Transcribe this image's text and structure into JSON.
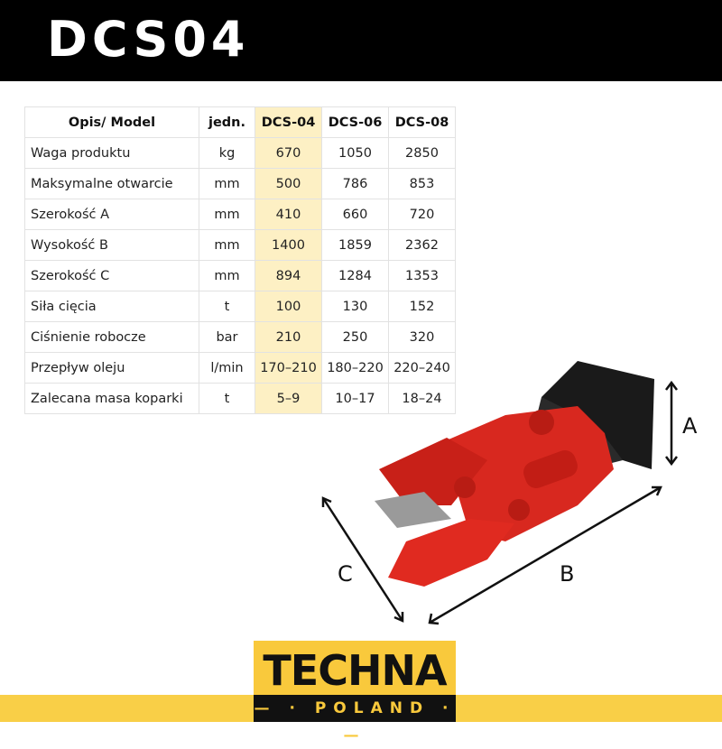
{
  "title": "DCS04",
  "table": {
    "headers": [
      "Opis/ Model",
      "jedn.",
      "DCS-04",
      "DCS-06",
      "DCS-08"
    ],
    "rows": [
      [
        "Waga produktu",
        "kg",
        "670",
        "1050",
        "2850"
      ],
      [
        "Maksymalne otwarcie",
        "mm",
        "500",
        "786",
        "853"
      ],
      [
        "Szerokość A",
        "mm",
        "410",
        "660",
        "720"
      ],
      [
        "Wysokość B",
        "mm",
        "1400",
        "1859",
        "2362"
      ],
      [
        "Szerokość C",
        "mm",
        "894",
        "1284",
        "1353"
      ],
      [
        "Siła cięcia",
        "t",
        "100",
        "130",
        "152"
      ],
      [
        "Ciśnienie robocze",
        "bar",
        "210",
        "250",
        "320"
      ],
      [
        "Przepływ oleju",
        "l/min",
        "170–210",
        "180–220",
        "220–240"
      ],
      [
        "Zalecana masa koparki",
        "t",
        "5–9",
        "10–17",
        "18–24"
      ]
    ],
    "highlight_color": "#fdf0c4"
  },
  "dimensions": {
    "a": "A",
    "b": "B",
    "c": "C"
  },
  "logo": {
    "top": "TECHNA",
    "bottom": "— · POLAND · —"
  },
  "colors": {
    "accent": "#f9c93c",
    "machine": "#d8281f"
  }
}
